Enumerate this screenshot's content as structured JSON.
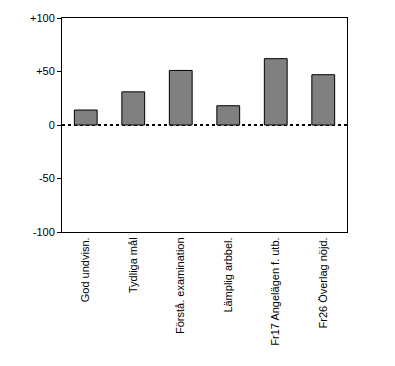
{
  "chart_data": {
    "type": "bar",
    "categories": [
      "God undvisn.",
      "Tydliga mål",
      "Förstå. examination",
      "Lämplig arbbel.",
      "Fr17 Angelägen f. utb.",
      "Fr26 Överlag nöjd."
    ],
    "values": [
      14,
      31,
      51,
      18,
      62,
      47
    ],
    "color": "#808080",
    "ylim": [
      -100,
      100
    ],
    "yticks": [
      {
        "value": -100,
        "label": "-100"
      },
      -50,
      0,
      {
        "value": 50,
        "label": "+50"
      },
      {
        "value": 100,
        "label": "+100"
      }
    ],
    "grid": false
  }
}
